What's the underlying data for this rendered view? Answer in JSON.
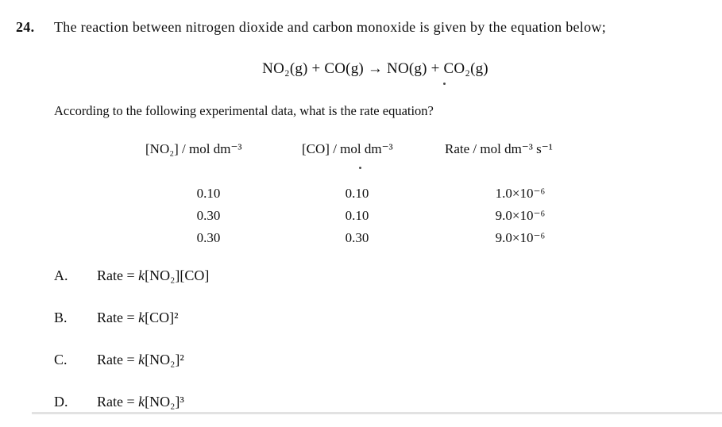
{
  "question": {
    "number": "24.",
    "text": "The reaction between nitrogen dioxide and carbon monoxide is given by the equation below;",
    "equation": "NO₂(g) + CO(g) → NO(g) + CO₂(g)",
    "prompt": "According to the following experimental data, what is the rate equation?"
  },
  "data_table": {
    "headers": [
      "[NO₂] / mol dm⁻³",
      "[CO] / mol dm⁻³",
      "Rate / mol dm⁻³ s⁻¹"
    ],
    "rows": [
      [
        "0.10",
        "0.10",
        "1.0×10⁻⁶"
      ],
      [
        "0.30",
        "0.10",
        "9.0×10⁻⁶"
      ],
      [
        "0.30",
        "0.30",
        "9.0×10⁻⁶"
      ]
    ]
  },
  "options": [
    {
      "letter": "A.",
      "rate_label": "Rate = ",
      "k": "k",
      "expression": "[NO₂][CO]"
    },
    {
      "letter": "B.",
      "rate_label": "Rate = ",
      "k": "k",
      "expression": "[CO]²"
    },
    {
      "letter": "C.",
      "rate_label": "Rate = ",
      "k": "k",
      "expression": "[NO₂]²"
    },
    {
      "letter": "D.",
      "rate_label": "Rate = ",
      "k": "k",
      "expression": "[NO₂]³"
    }
  ],
  "colors": {
    "background": "#ffffff",
    "text": "#0f0f0f"
  }
}
